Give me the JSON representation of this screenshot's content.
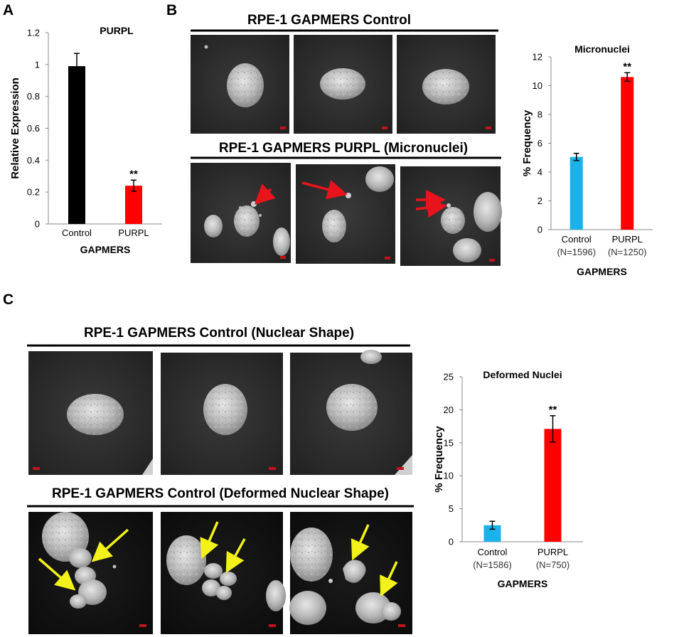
{
  "panels": {
    "a": "A",
    "b": "B",
    "c": "C"
  },
  "image_rows": {
    "b_top": "RPE-1 GAPMERS Control",
    "b_bottom": "RPE-1 GAPMERS PURPL (Micronuclei)",
    "c_top": "RPE-1 GAPMERS Control (Nuclear Shape)",
    "c_bottom": "RPE-1 GAPMERS Control (Deformed Nuclear Shape)"
  },
  "colors": {
    "control_a": "#000000",
    "purpl": "#ff0000",
    "control": "#1ab2ea",
    "arrow_b": "#e8141c",
    "arrow_c": "#f2f21a"
  },
  "chart_data": [
    {
      "type": "bar",
      "title": "PURPL",
      "xlabel": "GAPMERS",
      "ylabel": "Relative Expression",
      "ylim": [
        0,
        1.2
      ],
      "yticks": [
        "0",
        "0.2",
        "0.4",
        "0.6",
        "0.8",
        "1",
        "1.2"
      ],
      "categories": [
        "Control",
        "PURPL"
      ],
      "values": [
        0.99,
        0.24
      ],
      "errors": [
        0.08,
        0.035
      ],
      "significance": [
        "",
        "**"
      ],
      "grid": false,
      "legend": "none"
    },
    {
      "type": "bar",
      "title": "Micronuclei",
      "xlabel": "GAPMERS",
      "ylabel": "% Frequency",
      "ylim": [
        0,
        12
      ],
      "yticks": [
        "0",
        "2",
        "4",
        "6",
        "8",
        "10",
        "12"
      ],
      "categories": [
        "Control",
        "PURPL"
      ],
      "category_sublabels": [
        "(N=1596)",
        "(N=1250)"
      ],
      "values": [
        5.05,
        10.6
      ],
      "errors": [
        0.25,
        0.3
      ],
      "significance": [
        "",
        "**"
      ],
      "grid": false,
      "legend": "none"
    },
    {
      "type": "bar",
      "title": "Deformed Nuclei",
      "xlabel": "GAPMERS",
      "ylabel": "% Frequency",
      "ylim": [
        0,
        25
      ],
      "yticks": [
        "0",
        "5",
        "10",
        "15",
        "20",
        "25"
      ],
      "categories": [
        "Control",
        "PURPL"
      ],
      "category_sublabels": [
        "(N=1586)",
        "(N=750)"
      ],
      "values": [
        2.5,
        17.1
      ],
      "errors": [
        0.6,
        2.0
      ],
      "significance": [
        "",
        "**"
      ],
      "grid": false,
      "legend": "none"
    }
  ]
}
